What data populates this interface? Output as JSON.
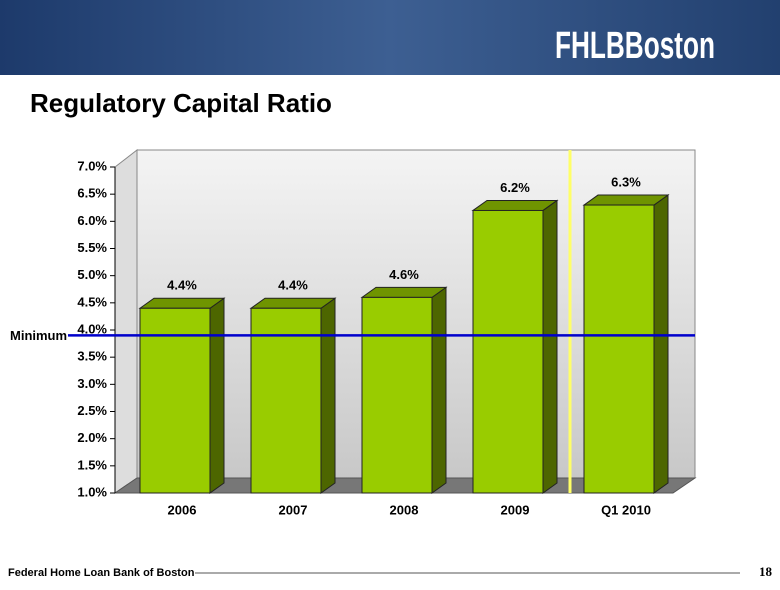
{
  "header": {
    "logo": "FHLBBoston"
  },
  "chart_data": {
    "type": "bar3d",
    "title": "Regulatory Capital Ratio",
    "categories": [
      "2006",
      "2007",
      "2008",
      "2009",
      "Q1 2010"
    ],
    "values": [
      4.4,
      4.4,
      4.6,
      6.2,
      6.3
    ],
    "value_labels": [
      "4.4%",
      "4.4%",
      "4.6%",
      "6.2%",
      "6.3%"
    ],
    "color": "#99cc00",
    "ylim": [
      1.0,
      7.0
    ],
    "yticks": [
      {
        "value": 1.0,
        "label": "1.0%"
      },
      {
        "value": 1.5,
        "label": "1.5%"
      },
      {
        "value": 2.0,
        "label": "2.0%"
      },
      {
        "value": 2.5,
        "label": "2.5%"
      },
      {
        "value": 3.0,
        "label": "3.0%"
      },
      {
        "value": 3.5,
        "label": "3.5%"
      },
      {
        "value": 4.0,
        "label": "4.0%"
      },
      {
        "value": 4.5,
        "label": "4.5%"
      },
      {
        "value": 5.0,
        "label": "5.0%"
      },
      {
        "value": 5.5,
        "label": "5.5%"
      },
      {
        "value": 6.0,
        "label": "6.0%"
      },
      {
        "value": 6.5,
        "label": "6.5%"
      },
      {
        "value": 7.0,
        "label": "7.0%"
      }
    ],
    "reference_line": {
      "label": "Minimum",
      "value": 3.9,
      "color": "#0000cc"
    }
  },
  "footer": {
    "text": "Federal Home Loan Bank of Boston",
    "page": "18"
  }
}
